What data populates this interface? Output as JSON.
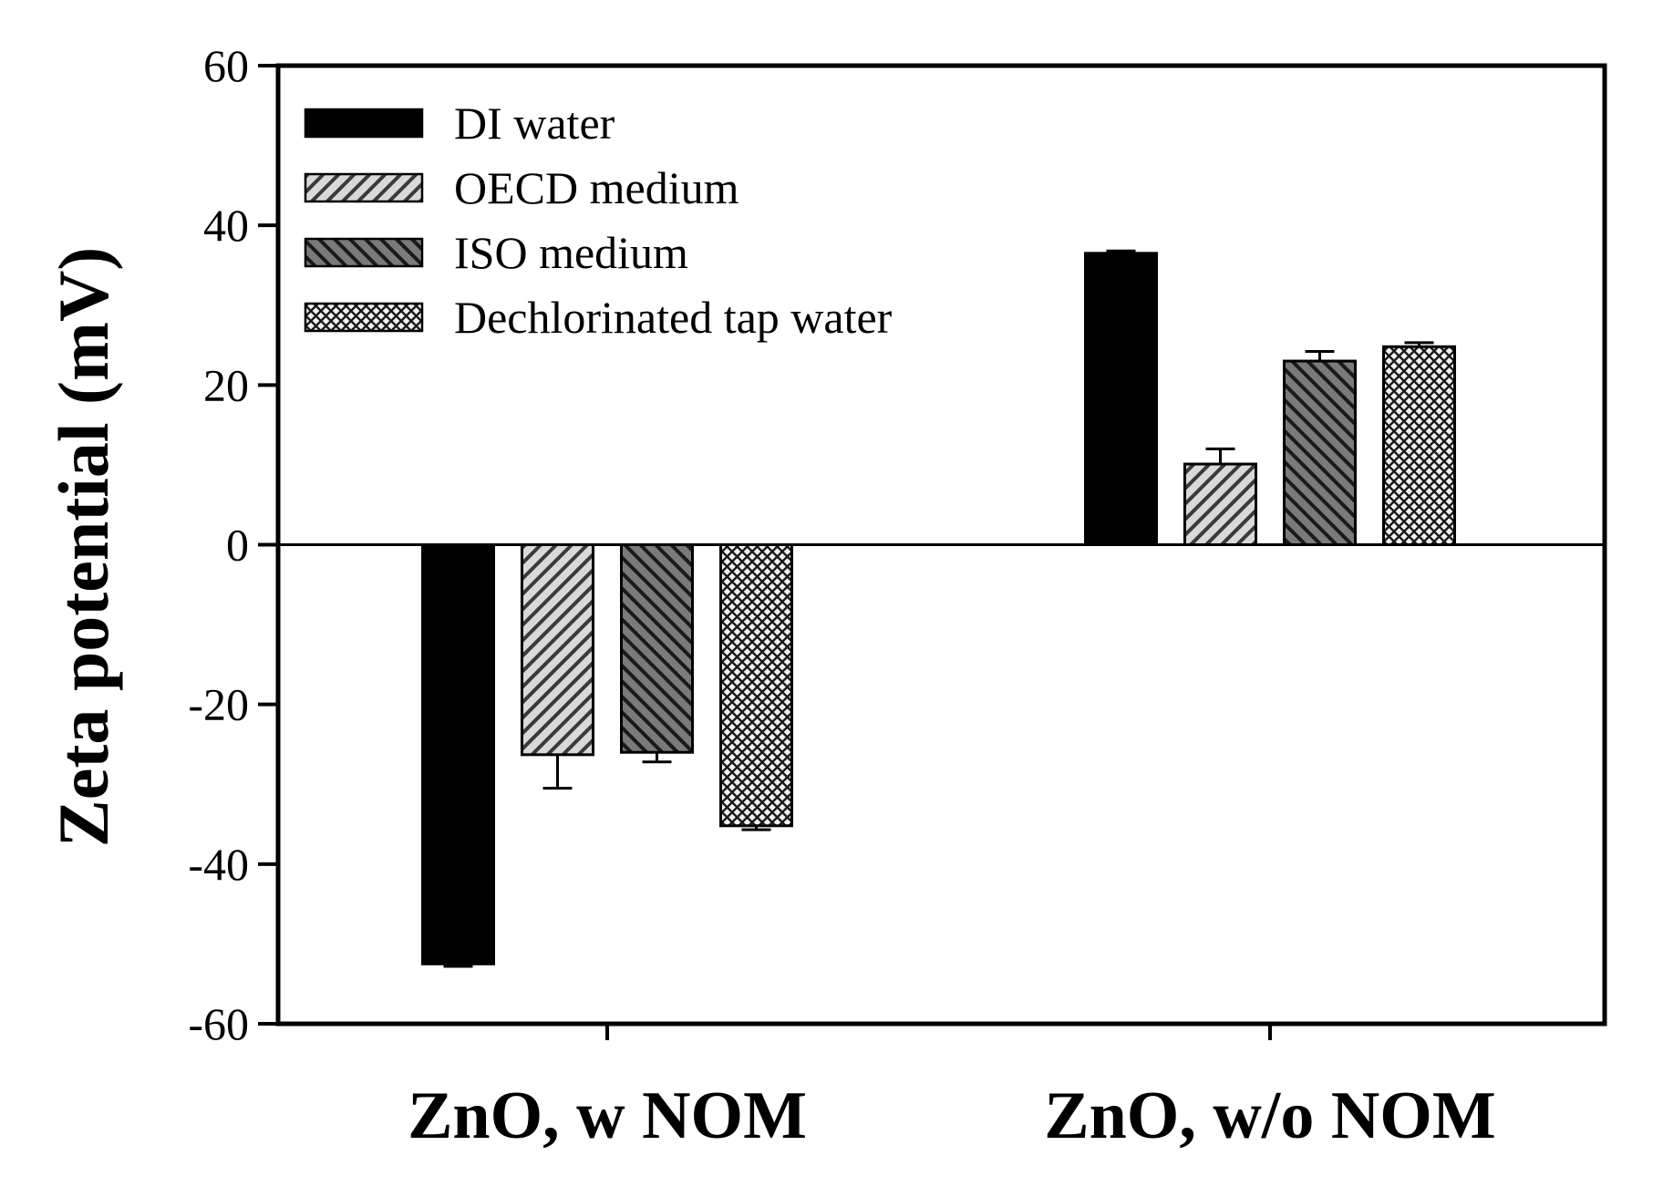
{
  "chart_data": {
    "type": "bar",
    "title": "",
    "xlabel": "",
    "ylabel": "Zeta potential (mV)",
    "ylim": [
      -60,
      60
    ],
    "yticks": [
      60,
      40,
      20,
      0,
      -20,
      -40,
      -60
    ],
    "yticks_labels": [
      "60",
      "40",
      "20",
      "0",
      "-20",
      "-40",
      "-60"
    ],
    "categories": [
      "ZnO, w NOM",
      "ZnO, w/o NOM"
    ],
    "legend_position": "top-left",
    "grid": false,
    "series": [
      {
        "name": "DI water",
        "pattern": "solid",
        "values": [
          -52.5,
          36.5
        ],
        "errors": [
          0.3,
          0.3
        ]
      },
      {
        "name": "OECD medium",
        "pattern": "diag-light",
        "values": [
          -26.3,
          10.1
        ],
        "errors": [
          4.2,
          1.9
        ]
      },
      {
        "name": "ISO medium",
        "pattern": "diag-dark",
        "values": [
          -26.0,
          23.0
        ],
        "errors": [
          1.2,
          1.2
        ]
      },
      {
        "name": "Dechlorinated tap water",
        "pattern": "crosshatch",
        "values": [
          -35.2,
          24.8
        ],
        "errors": [
          0.5,
          0.5
        ]
      }
    ]
  }
}
